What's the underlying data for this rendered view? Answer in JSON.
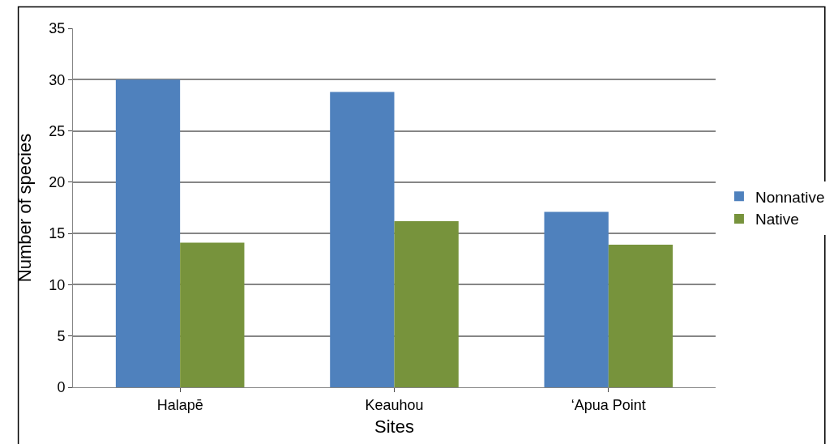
{
  "chart_data": {
    "type": "bar",
    "xlabel": "Sites",
    "ylabel": "Number of species",
    "categories": [
      "Halapē",
      "Keauhou",
      "‘Apua Point"
    ],
    "series": [
      {
        "name": "Nonnative",
        "color": "#4f81bd",
        "values": [
          30,
          28.8,
          17.1
        ]
      },
      {
        "name": "Native",
        "color": "#77933c",
        "values": [
          14.1,
          16.2,
          13.9
        ]
      }
    ],
    "ylim": [
      0,
      35
    ],
    "yticks": [
      0,
      5,
      10,
      15,
      20,
      25,
      30,
      35
    ],
    "grid": "y",
    "legend": "right"
  }
}
